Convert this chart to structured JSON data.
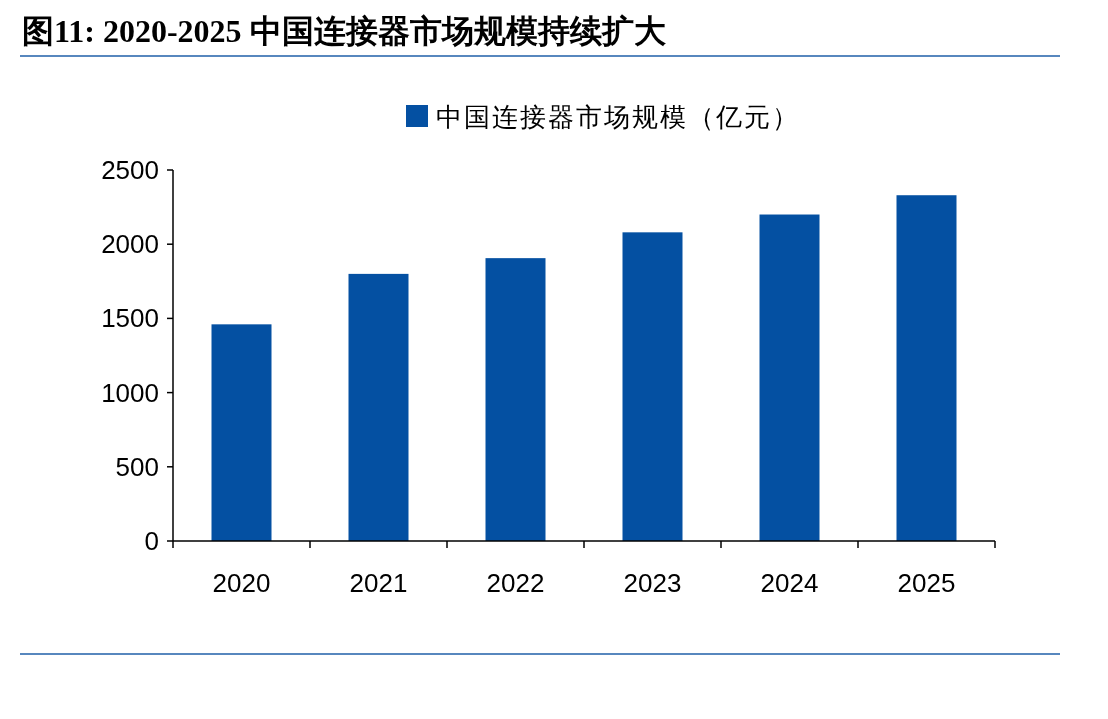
{
  "chart_data": {
    "type": "bar",
    "title": "图11: 2020-2025 中国连接器市场规模持续扩大",
    "categories": [
      "2020",
      "2021",
      "2022",
      "2023",
      "2024",
      "2025"
    ],
    "series": [
      {
        "name": "中国连接器市场规模（亿元）",
        "color": "#0450a2",
        "values": [
          1460,
          1800,
          1906,
          2080,
          2200,
          2330
        ]
      }
    ],
    "ylim": [
      0,
      2500
    ],
    "yticks": [
      0,
      500,
      1000,
      1500,
      2000,
      2500
    ],
    "grid": false,
    "legend": "top"
  }
}
